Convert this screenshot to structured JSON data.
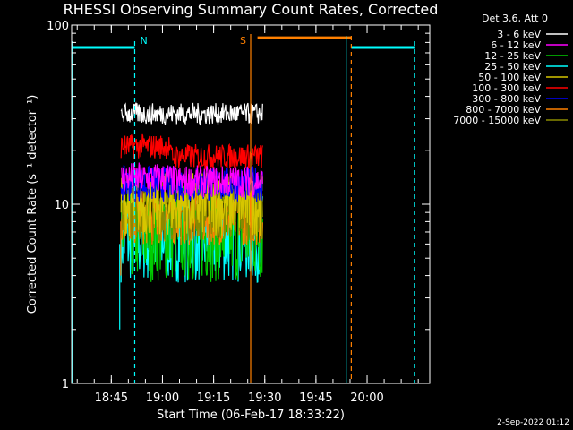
{
  "chart_data": {
    "type": "line",
    "title": "RHESSI Observing Summary Count Rates, Corrected",
    "xlabel": "Start Time (06-Feb-17 18:33:22)",
    "ylabel": "Corrected Count Rate (s⁻¹ detector⁻¹)",
    "yscale": "log",
    "ylim": [
      1,
      100
    ],
    "xlim_minutes": [
      0,
      105
    ],
    "xticks": [
      "18:45",
      "19:00",
      "19:15",
      "19:30",
      "19:45",
      "20:00"
    ],
    "yticks": [
      "1",
      "10",
      "100"
    ],
    "legend_header": "Det 3,6, Att 0",
    "legend_position": "top-right",
    "data_interval_minutes": [
      14.5,
      56
    ],
    "series": [
      {
        "name": "3 - 6 keV",
        "color": "#ffffff",
        "level": 32
      },
      {
        "name": "6 - 12 keV",
        "color": "#ff00ff",
        "level": 14
      },
      {
        "name": "12 - 25 keV",
        "color": "#00cc00",
        "level": 7
      },
      {
        "name": "25 - 50 keV",
        "color": "#00ffff",
        "level": 6.5
      },
      {
        "name": "50 - 100 keV",
        "color": "#d6c600",
        "level": 10
      },
      {
        "name": "100 - 300 keV",
        "color": "#ff0000",
        "level": 21
      },
      {
        "name": "300 - 800 keV",
        "color": "#0000ff",
        "level": 13
      },
      {
        "name": "800 - 7000 keV",
        "color": "#ff8000",
        "level": 8.5
      },
      {
        "name": "7000 - 15000 keV",
        "color": "#8a8a00",
        "level": 9
      }
    ],
    "annotations": [
      {
        "text": "N",
        "color": "#00ffff",
        "at_minute": 18.5
      },
      {
        "text": "S",
        "color": "#ff8000",
        "at_minute": 52.5
      }
    ],
    "night_bars": [
      {
        "start_minute": 0,
        "end_minute": 18.5,
        "color": "#00ffff",
        "y": 75
      },
      {
        "start_minute": 54.5,
        "end_minute": 82,
        "color": "#ff8000",
        "y": 85
      },
      {
        "start_minute": 82,
        "end_minute": 100.5,
        "color": "#00ffff",
        "y": 75
      }
    ]
  },
  "footer": "2-Sep-2022 01:12"
}
